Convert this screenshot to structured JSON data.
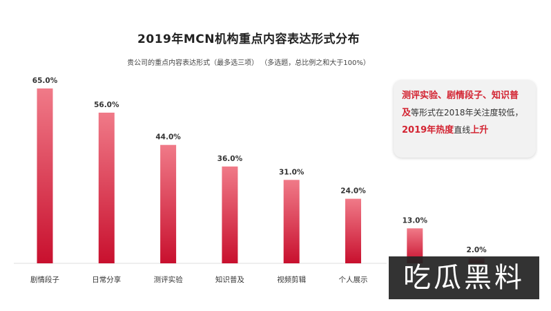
{
  "chart_data": {
    "type": "bar",
    "title": "2019年MCN机构重点内容表达形式分布",
    "subtitle": "贵公司的重点内容表达形式（最多选三项）  （多选题，总比例之和大于100%）",
    "categories": [
      "剧情段子",
      "日常分享",
      "测评实验",
      "知识普及",
      "视频剪辑",
      "个人展示",
      "",
      ""
    ],
    "values": [
      65.0,
      56.0,
      44.0,
      36.0,
      31.0,
      24.0,
      13.0,
      2.0
    ],
    "value_labels": [
      "65.0%",
      "56.0%",
      "44.0%",
      "36.0%",
      "31.0%",
      "24.0%",
      "13.0%",
      "2.0%"
    ],
    "ylim": [
      0,
      65
    ],
    "grid": false,
    "legend": "none",
    "colors": {
      "bar_top": "#f07a88",
      "bar_bottom": "#c8102e",
      "axis": "#cccccc"
    }
  },
  "callout": {
    "line1_red": "测评实验、剧情段子、知识普",
    "line2_red": "及",
    "line2_plain": "等形式在2018年关注度较低，",
    "line3_red_a": "2019年热度",
    "line3_plain": "直线",
    "line3_red_b": "上升"
  },
  "watermark": {
    "text": "吃瓜黑料"
  }
}
